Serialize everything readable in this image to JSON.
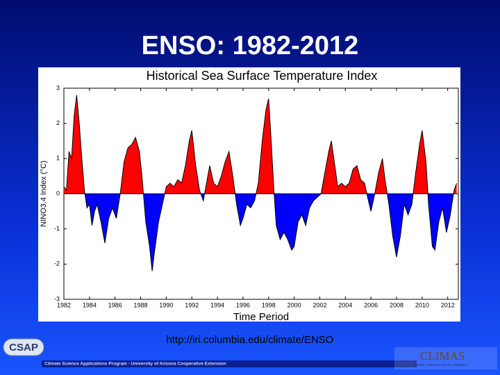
{
  "slide_title": "ENSO: 1982-2012",
  "url": "http://iri.columbia.edu/climate/ENSO",
  "footer": {
    "logo_left": "CSAP",
    "program": "Climate Science Applications Program - University of Arizona Cooperative Extension",
    "logo_right": "CLIMAS",
    "tagline": "Climate Assessment for the Southwest"
  },
  "chart_data": {
    "type": "area",
    "title": "Historical Sea Surface Temperature Index",
    "x_label": "Time Period",
    "y_label": "NINO3.4 Index (°C)",
    "positive_color": "#ff0000",
    "negative_color": "#0000ff",
    "xlim": [
      1982,
      2012.83
    ],
    "ylim": [
      -3,
      3
    ],
    "xticks": [
      1982,
      1984,
      1986,
      1988,
      1990,
      1992,
      1994,
      1996,
      1998,
      2000,
      2002,
      2004,
      2006,
      2008,
      2010,
      2012
    ],
    "yticks": [
      3,
      2,
      1,
      0,
      -1,
      -2,
      -3
    ],
    "x": [
      1982.0,
      1982.2,
      1982.4,
      1982.6,
      1982.8,
      1983.0,
      1983.2,
      1983.4,
      1983.6,
      1983.8,
      1984.0,
      1984.2,
      1984.4,
      1984.6,
      1984.9,
      1985.2,
      1985.5,
      1985.8,
      1986.1,
      1986.4,
      1986.7,
      1987.0,
      1987.3,
      1987.6,
      1987.9,
      1988.1,
      1988.4,
      1988.7,
      1988.9,
      1989.1,
      1989.4,
      1989.7,
      1990.0,
      1990.3,
      1990.6,
      1990.9,
      1991.2,
      1991.5,
      1991.8,
      1992.0,
      1992.3,
      1992.6,
      1992.9,
      1993.2,
      1993.4,
      1993.7,
      1994.0,
      1994.3,
      1994.6,
      1994.9,
      1995.2,
      1995.5,
      1995.8,
      1996.0,
      1996.3,
      1996.6,
      1996.9,
      1997.2,
      1997.5,
      1997.8,
      1998.0,
      1998.2,
      1998.4,
      1998.6,
      1998.9,
      1999.2,
      1999.5,
      1999.8,
      2000.0,
      2000.3,
      2000.6,
      2000.9,
      2001.2,
      2001.5,
      2001.8,
      2002.1,
      2002.4,
      2002.7,
      2002.9,
      2003.1,
      2003.4,
      2003.7,
      2004.0,
      2004.3,
      2004.6,
      2004.9,
      2005.2,
      2005.5,
      2005.8,
      2006.0,
      2006.3,
      2006.6,
      2006.9,
      2007.1,
      2007.4,
      2007.7,
      2008.0,
      2008.3,
      2008.6,
      2008.9,
      2009.2,
      2009.5,
      2009.8,
      2010.0,
      2010.3,
      2010.5,
      2010.8,
      2011.0,
      2011.3,
      2011.6,
      2011.9,
      2012.2,
      2012.5,
      2012.7
    ],
    "values": [
      0.2,
      0.1,
      1.2,
      1.0,
      2.2,
      2.8,
      2.0,
      1.0,
      0.1,
      -0.4,
      -0.3,
      -0.9,
      -0.5,
      -0.3,
      -0.8,
      -1.4,
      -0.7,
      -0.4,
      -0.7,
      0.0,
      0.9,
      1.3,
      1.4,
      1.6,
      1.2,
      0.5,
      -0.8,
      -1.5,
      -2.2,
      -1.6,
      -0.8,
      -0.3,
      0.2,
      0.3,
      0.2,
      0.4,
      0.3,
      0.8,
      1.5,
      1.8,
      0.8,
      0.1,
      -0.2,
      0.4,
      0.8,
      0.3,
      0.2,
      0.5,
      0.9,
      1.2,
      0.5,
      -0.3,
      -0.9,
      -0.7,
      -0.3,
      -0.4,
      -0.2,
      0.3,
      1.5,
      2.4,
      2.7,
      1.5,
      0.2,
      -0.9,
      -1.3,
      -1.1,
      -1.3,
      -1.6,
      -1.5,
      -0.8,
      -0.6,
      -0.9,
      -0.4,
      -0.2,
      -0.1,
      0.0,
      0.6,
      1.2,
      1.5,
      1.0,
      0.2,
      0.3,
      0.2,
      0.3,
      0.7,
      0.8,
      0.4,
      0.3,
      -0.2,
      -0.5,
      0.0,
      0.6,
      1.0,
      0.4,
      -0.3,
      -1.2,
      -1.8,
      -1.2,
      -0.3,
      -0.6,
      -0.3,
      0.6,
      1.4,
      1.8,
      0.9,
      -0.3,
      -1.5,
      -1.6,
      -0.8,
      -0.4,
      -1.1,
      -0.6,
      0.1,
      0.3
    ]
  }
}
